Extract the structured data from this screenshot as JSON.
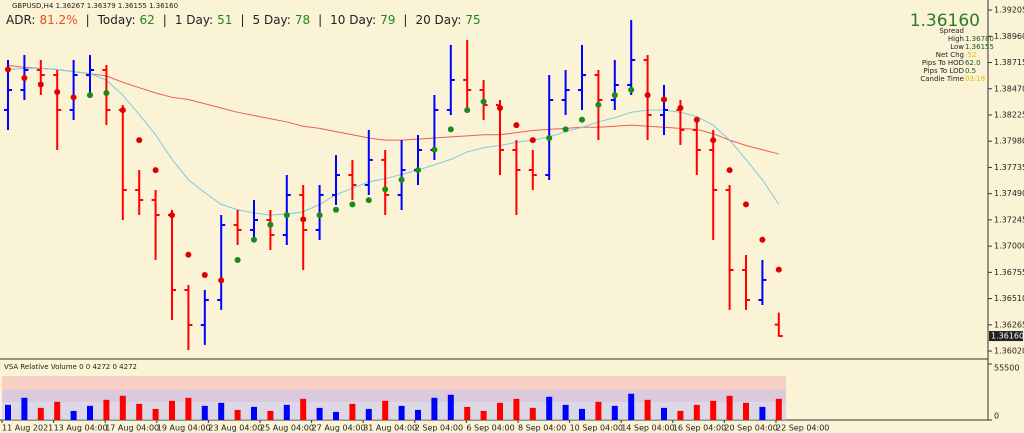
{
  "chart_data": [
    {
      "type": "candlestick",
      "title": "GBPUSD,H4  1.36267 1.36379 1.36155 1.36160",
      "stats": [
        {
          "label": "ADR:",
          "value": "81.2%"
        },
        {
          "label": "Today:",
          "value": "62"
        },
        {
          "label": "1 Day:",
          "value": "51"
        },
        {
          "label": "5 Day:",
          "value": "78"
        },
        {
          "label": "10 Day:",
          "value": "79"
        },
        {
          "label": "20 Day:",
          "value": "75"
        }
      ],
      "info": {
        "price": "1.36160",
        "rows": [
          {
            "label": "Spread"
          },
          {
            "label": "High",
            "value": "1.36780"
          },
          {
            "label": "Low",
            "value": "1.36155"
          },
          {
            "label": "Net Chg",
            "value": "-52"
          },
          {
            "label": "Pips To HOD",
            "value": "62.0"
          },
          {
            "label": "Pips To LOD",
            "value": "0.5"
          },
          {
            "label": "Candle Time",
            "value": "03:18"
          }
        ]
      },
      "last_price_label": "1.36160",
      "up_color": "#0000ff",
      "down_color": "#ff0000",
      "open": [
        1.38272,
        1.38458,
        1.38645,
        1.38598,
        1.38272,
        1.38598,
        1.38645,
        1.38272,
        1.37524,
        1.37431,
        1.37291,
        1.3659,
        1.36263,
        1.36497,
        1.37197,
        1.37151,
        1.37244,
        1.37104,
        1.37478,
        1.37151,
        1.37478,
        1.37664,
        1.37571,
        1.37805,
        1.37478,
        1.37711,
        1.37898,
        1.38272,
        1.38552,
        1.38458,
        1.38318,
        1.37898,
        1.37711,
        1.37664,
        1.38365,
        1.38458,
        1.38598,
        1.38365,
        1.38505,
        1.38739,
        1.38225,
        1.38272,
        1.38085,
        1.37898,
        1.37524,
        1.36777,
        1.36497,
        1.36267
      ],
      "high": [
        1.38739,
        1.38785,
        1.38739,
        1.38645,
        1.38739,
        1.38785,
        1.38692,
        1.38318,
        1.37711,
        1.37524,
        1.37338,
        1.36637,
        1.3659,
        1.37291,
        1.37338,
        1.37431,
        1.37338,
        1.37664,
        1.37571,
        1.37571,
        1.37851,
        1.37805,
        1.38085,
        1.37898,
        1.37991,
        1.38038,
        1.38412,
        1.38879,
        1.38925,
        1.38552,
        1.38365,
        1.37991,
        1.37898,
        1.38598,
        1.38645,
        1.38879,
        1.38645,
        1.38739,
        1.39112,
        1.38785,
        1.38505,
        1.38365,
        1.38178,
        1.38085,
        1.37571,
        1.36917,
        1.36871,
        1.36379
      ],
      "low": [
        1.38085,
        1.38365,
        1.38412,
        1.37898,
        1.38178,
        1.38412,
        1.38131,
        1.37244,
        1.37291,
        1.36871,
        1.3631,
        1.3603,
        1.36077,
        1.36404,
        1.37011,
        1.37057,
        1.36964,
        1.37011,
        1.36777,
        1.37057,
        1.37384,
        1.37431,
        1.37478,
        1.37291,
        1.37338,
        1.37571,
        1.37805,
        1.38225,
        1.38272,
        1.38178,
        1.37664,
        1.37291,
        1.37524,
        1.37618,
        1.38225,
        1.38272,
        1.37991,
        1.38272,
        1.38412,
        1.37991,
        1.38038,
        1.37945,
        1.37664,
        1.37057,
        1.36404,
        1.36404,
        1.3645,
        1.36155
      ],
      "close": [
        1.38458,
        1.38645,
        1.38598,
        1.38272,
        1.38598,
        1.38645,
        1.38272,
        1.37524,
        1.37431,
        1.37291,
        1.3659,
        1.36263,
        1.36497,
        1.37197,
        1.37151,
        1.37244,
        1.37104,
        1.37478,
        1.37151,
        1.37478,
        1.37664,
        1.37571,
        1.37805,
        1.37478,
        1.37711,
        1.37898,
        1.38272,
        1.38552,
        1.38458,
        1.38318,
        1.37898,
        1.37711,
        1.37664,
        1.38365,
        1.38458,
        1.38598,
        1.38365,
        1.38505,
        1.38739,
        1.38225,
        1.38272,
        1.38085,
        1.37898,
        1.37524,
        1.36777,
        1.36497,
        1.36684,
        1.3616
      ],
      "overlays": [
        {
          "color": "#e8605a",
          "values": [
            1.3869,
            1.3867,
            1.3866,
            1.3865,
            1.3863,
            1.3861,
            1.3859,
            1.3853,
            1.3848,
            1.3843,
            1.3839,
            1.3837,
            1.3833,
            1.3829,
            1.3825,
            1.3822,
            1.3819,
            1.3816,
            1.3812,
            1.381,
            1.3807,
            1.3804,
            1.3801,
            1.3799,
            1.3799,
            1.38,
            1.3801,
            1.3802,
            1.3803,
            1.3804,
            1.3804,
            1.3806,
            1.3808,
            1.3809,
            1.381,
            1.3811,
            1.3811,
            1.3812,
            1.3813,
            1.3812,
            1.3811,
            1.381,
            1.3809,
            1.3805,
            1.3799,
            1.3794,
            1.379,
            1.3786
          ]
        },
        {
          "color": "#7fc8e0",
          "values": [
            1.3865,
            1.3866,
            1.3866,
            1.3865,
            1.3863,
            1.3861,
            1.3855,
            1.3841,
            1.3823,
            1.3804,
            1.3781,
            1.3762,
            1.375,
            1.3739,
            1.3734,
            1.3731,
            1.3729,
            1.373,
            1.3732,
            1.3739,
            1.3748,
            1.3754,
            1.376,
            1.3763,
            1.3767,
            1.3771,
            1.3776,
            1.3781,
            1.3788,
            1.3792,
            1.3794,
            1.3797,
            1.3799,
            1.3802,
            1.3807,
            1.3811,
            1.3816,
            1.382,
            1.3825,
            1.3827,
            1.3827,
            1.3825,
            1.3821,
            1.3813,
            1.3799,
            1.3781,
            1.3762,
            1.3739
          ]
        }
      ],
      "dots": {
        "up_color": "#1a8a1a",
        "down_color": "#e00000",
        "values": [
          1.3865,
          1.3857,
          1.3851,
          1.3844,
          1.3839,
          1.3841,
          1.3843,
          1.3827,
          1.3799,
          1.3771,
          1.3729,
          1.3692,
          1.3673,
          1.3668,
          1.3687,
          1.3706,
          1.372,
          1.3729,
          1.3725,
          1.3729,
          1.3734,
          1.3739,
          1.3743,
          1.3753,
          1.3762,
          1.3771,
          1.379,
          1.3809,
          1.3827,
          1.3835,
          1.3829,
          1.3813,
          1.3799,
          1.3801,
          1.3809,
          1.3818,
          1.3832,
          1.3841,
          1.3846,
          1.3841,
          1.3837,
          1.3829,
          1.3818,
          1.3799,
          1.3771,
          1.3739,
          1.3706,
          1.3678
        ]
      },
      "ylim": [
        1.35955,
        1.39299
      ],
      "yticks": [
        1.39205,
        {
          "value": 1.3896,
          "label": "1.38960"
        },
        1.38715,
        {
          "value": 1.3847,
          "label": "1.38470"
        },
        1.38225,
        {
          "value": 1.3798,
          "label": "1.37980"
        },
        1.37735,
        {
          "value": 1.3749,
          "label": "1.37490"
        },
        1.37245,
        {
          "value": 1.37,
          "label": "1.37000"
        },
        1.36755,
        {
          "value": 1.3651,
          "label": "1.36510"
        },
        1.36265,
        {
          "value": 1.3602,
          "label": "1.36020"
        }
      ],
      "x_labels": [
        "11 Aug 2021",
        "13 Aug 04:00",
        "17 Aug 04:00",
        "19 Aug 04:00",
        "23 Aug 04:00",
        "25 Aug 04:00",
        "27 Aug 04:00",
        "31 Aug 04:00",
        "2 Sep 04:00",
        "6 Sep 04:00",
        "8 Sep 04:00",
        "10 Sep 04:00",
        "14 Sep 04:00",
        "16 Sep 04:00",
        "20 Sep 04:00",
        "22 Sep 04:00"
      ]
    },
    {
      "type": "bar",
      "title": "VSA Relative Volume 0 0 4272 0 4272",
      "values": [
        15000,
        22000,
        12000,
        18000,
        9000,
        14000,
        20000,
        24000,
        16000,
        11000,
        19000,
        22000,
        14000,
        17000,
        10000,
        13000,
        9000,
        15000,
        21000,
        12000,
        8000,
        16000,
        11000,
        19000,
        14000,
        10000,
        22000,
        25000,
        13000,
        9000,
        17000,
        21000,
        12000,
        23000,
        15000,
        11000,
        18000,
        14000,
        26000,
        20000,
        12000,
        9000,
        15000,
        19000,
        24000,
        17000,
        13000,
        21000
      ],
      "ylim": [
        0,
        55500
      ],
      "yticks": [
        0,
        55500
      ]
    }
  ]
}
